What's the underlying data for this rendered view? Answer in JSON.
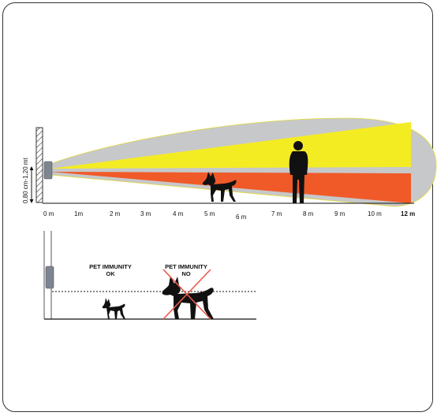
{
  "colors": {
    "coverage": "#c7c8ca",
    "upper_beam": "#f4ec23",
    "lower_beam": "#f05a28",
    "silhouette": "#111111",
    "cross": "#ea5a4a",
    "wall_hatch": "#333333"
  },
  "top_diagram": {
    "height_label": "0,80 cm-1,20 mt",
    "distance_ticks": [
      {
        "label": "0 m",
        "bold": false
      },
      {
        "label": "1m",
        "bold": false
      },
      {
        "label": "2 m",
        "bold": false
      },
      {
        "label": "3 m",
        "bold": false
      },
      {
        "label": "4 m",
        "bold": false
      },
      {
        "label": "5 m",
        "bold": false
      },
      {
        "label": "6 m",
        "bold": false
      },
      {
        "label": "7 m",
        "bold": false
      },
      {
        "label": "8 m",
        "bold": false
      },
      {
        "label": "9 m",
        "bold": false
      },
      {
        "label": "10 m",
        "bold": false
      },
      {
        "label": "12 m",
        "bold": true
      }
    ]
  },
  "bottom_diagram": {
    "ok_label_line1": "PET IMMUNITY",
    "ok_label_line2": "OK",
    "no_label_line1": "PET IMMUNITY",
    "no_label_line2": "NO"
  }
}
